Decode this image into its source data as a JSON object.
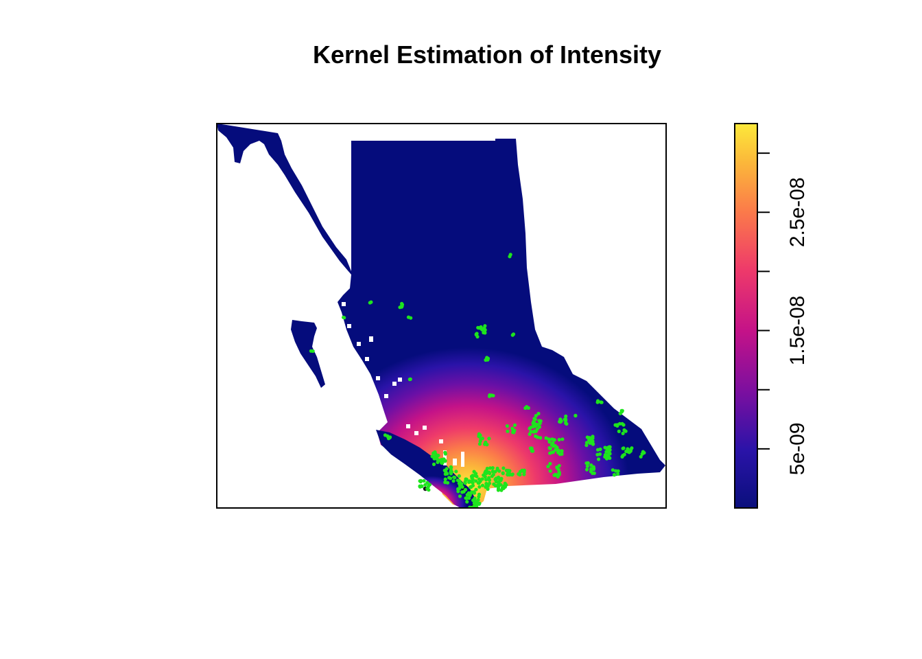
{
  "chart_data": {
    "type": "heatmap",
    "title": "Kernel Estimation of Intensity",
    "xlabel": "",
    "ylabel": "",
    "colorbar": {
      "range": [
        0,
        3.25e-08
      ],
      "ticks": [
        {
          "value": 5e-09,
          "label": "5e-09"
        },
        {
          "value": 1e-08,
          "label": ""
        },
        {
          "value": 1.5e-08,
          "label": "1.5e-08"
        },
        {
          "value": 2e-08,
          "label": ""
        },
        {
          "value": 2.5e-08,
          "label": "2.5e-08"
        },
        {
          "value": 3e-08,
          "label": ""
        }
      ],
      "palette": [
        "#0a0f7c",
        "#3a0fb0",
        "#7a0fa0",
        "#c41288",
        "#ee3a6a",
        "#fb7a4a",
        "#fbb83a",
        "#fde93a"
      ]
    },
    "map_fill_color": "#050c7c",
    "event_point_color": "#1ee41e",
    "hotspots": [
      {
        "x": 0.56,
        "y": 0.92,
        "peak": 3e-08
      },
      {
        "x": 0.58,
        "y": 0.96,
        "peak": 3.1e-08
      }
    ]
  }
}
